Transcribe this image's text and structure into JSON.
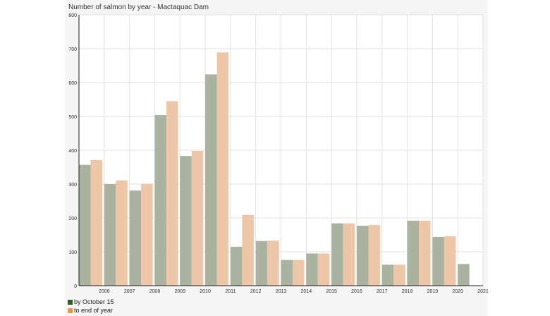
{
  "chart_data": {
    "type": "bar",
    "title": "Number of salmon by year - Mactaquac Dam",
    "categories": [
      "2006",
      "2007",
      "2008",
      "2009",
      "2010",
      "2011",
      "2012",
      "2013",
      "2014",
      "2015",
      "2016",
      "2017",
      "2018",
      "2019",
      "2020",
      "2021"
    ],
    "series": [
      {
        "name": "by October 15",
        "color": "#a9b3a0",
        "values": [
          357,
          300,
          281,
          504,
          383,
          624,
          115,
          132,
          76,
          95,
          184,
          177,
          62,
          192,
          144,
          64
        ]
      },
      {
        "name": "to end of year",
        "color": "#edc7a7",
        "values": [
          371,
          311,
          301,
          545,
          398,
          689,
          209,
          133,
          76,
          95,
          184,
          179,
          62,
          192,
          146,
          null
        ]
      }
    ],
    "y_ticks": [
      "0",
      "100",
      "200",
      "300",
      "400",
      "500",
      "600",
      "700",
      "800"
    ],
    "ylim": [
      0,
      800
    ],
    "xlabel": "",
    "ylabel": "",
    "grid": true
  },
  "legend_colors": {
    "by_october": "#2f5a2a",
    "end_of_year": "#e49a52"
  }
}
